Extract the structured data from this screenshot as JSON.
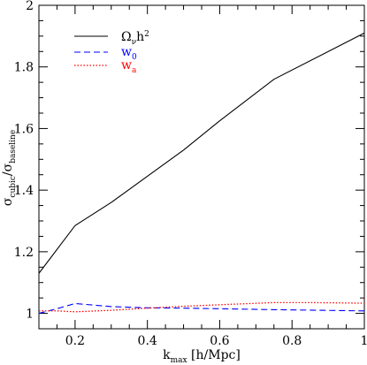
{
  "chart_data": {
    "type": "line",
    "x_range": [
      0.1,
      1.0
    ],
    "y_range": [
      0.95,
      2.0
    ],
    "x_ticks": [
      0.2,
      0.4,
      0.6,
      0.8,
      1.0
    ],
    "x_tick_labels": [
      "0.2",
      "0.4",
      "0.6",
      "0.8",
      "1"
    ],
    "y_ticks": [
      1.0,
      1.2,
      1.4,
      1.6,
      1.8,
      2.0
    ],
    "y_tick_labels": [
      "1",
      "1.2",
      "1.4",
      "1.6",
      "1.8",
      "2"
    ],
    "xlabel": {
      "main": "k",
      "sub": "max",
      "rest": " [h/Mpc]"
    },
    "ylabel": {
      "s1": "σ",
      "sub1": "cubic",
      "mid": "/σ",
      "sub2": "baseline"
    },
    "legend_position": "top-left",
    "grid": false,
    "series": [
      {
        "name": "Ω",
        "name_sub": "ν",
        "name_rest": "h",
        "name_sup": "2",
        "color": "#000000",
        "dash": "solid",
        "x": [
          0.1,
          0.2,
          0.3,
          0.4,
          0.5,
          0.6,
          0.75,
          1.0
        ],
        "y": [
          1.13,
          1.285,
          1.36,
          1.445,
          1.53,
          1.625,
          1.76,
          1.91
        ]
      },
      {
        "name": "w",
        "name_sub": "0",
        "color": "#0000ff",
        "dash": "dashed",
        "x": [
          0.1,
          0.15,
          0.2,
          0.3,
          0.4,
          0.5,
          0.6,
          0.75,
          1.0
        ],
        "y": [
          1.0,
          1.015,
          1.032,
          1.022,
          1.018,
          1.017,
          1.015,
          1.012,
          1.008
        ]
      },
      {
        "name": "w",
        "name_sub": "a",
        "color": "#ff0000",
        "dash": "dotted",
        "x": [
          0.1,
          0.15,
          0.2,
          0.3,
          0.4,
          0.5,
          0.6,
          0.75,
          0.85,
          1.0
        ],
        "y": [
          1.008,
          1.008,
          1.005,
          1.01,
          1.017,
          1.023,
          1.028,
          1.035,
          1.035,
          1.033
        ]
      }
    ]
  }
}
